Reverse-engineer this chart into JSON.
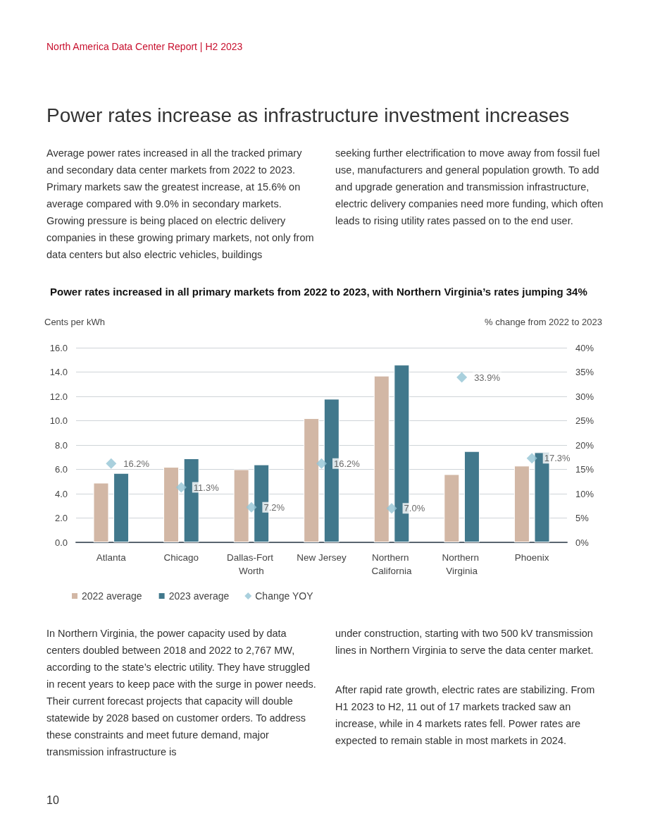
{
  "chart_data": {
    "type": "bar",
    "title": "Power rates increased in all primary markets from 2022 to 2023, with Northern Virginia’s rates jumping 34%",
    "ylabel": "Cents per kWh",
    "y2label": "% change from 2022 to 2023",
    "categories": [
      "Atlanta",
      "Chicago",
      "Dallas-Fort Worth",
      "New Jersey",
      "Northern California",
      "Northern Virginia",
      "Phoenix"
    ],
    "series": [
      {
        "name": "2022 average",
        "type": "bar",
        "color": "#d2b7a5",
        "values": [
          4.9,
          6.2,
          6.0,
          10.2,
          13.7,
          5.6,
          6.3
        ]
      },
      {
        "name": "2023 average",
        "type": "bar",
        "color": "#41788c",
        "values": [
          5.7,
          6.9,
          6.4,
          11.8,
          14.6,
          7.5,
          7.4
        ]
      },
      {
        "name": "Change YOY",
        "type": "scatter",
        "axis": "y2",
        "marker": "diamond",
        "color": "#93c4d4",
        "values": [
          16.2,
          11.3,
          7.2,
          16.2,
          7.0,
          33.9,
          17.3
        ],
        "value_labels": [
          "16.2%",
          "11.3%",
          "7.2%",
          "16.2%",
          "7.0%",
          "33.9%",
          "17.3%"
        ]
      }
    ],
    "ylim": [
      0,
      16
    ],
    "yticks": [
      {
        "value": 0,
        "label": "0.0"
      },
      {
        "value": 2,
        "label": "2.0"
      },
      {
        "value": 4,
        "label": "4.0"
      },
      {
        "value": 6,
        "label": "6.0"
      },
      {
        "value": 8,
        "label": "8.0"
      },
      {
        "value": 10,
        "label": "10.0"
      },
      {
        "value": 12,
        "label": "12.0"
      },
      {
        "value": 14,
        "label": "14.0"
      },
      {
        "value": 16,
        "label": "16.0"
      }
    ],
    "y2lim": [
      0,
      40
    ],
    "y2ticks": [
      {
        "value": 0,
        "label": "0%"
      },
      {
        "value": 5,
        "label": "5%"
      },
      {
        "value": 10,
        "label": "10%"
      },
      {
        "value": 15,
        "label": "15%"
      },
      {
        "value": 20,
        "label": "20%"
      },
      {
        "value": 25,
        "label": "25%"
      },
      {
        "value": 30,
        "label": "30%"
      },
      {
        "value": 35,
        "label": "35%"
      },
      {
        "value": 40,
        "label": "40%"
      }
    ],
    "grid": "y",
    "legend": "bottom left",
    "annotations": [
      "North America Data Center Report | H2 2023",
      "Power rates increase as infrastructure investment increases",
      "Average power rates increased in all the tracked primary and secondary data center markets from 2022 to 2023. Primary markets saw the greatest increase, at 15.6% on average compared with 9.0% in secondary markets. Growing pressure is being placed on electric delivery companies in these growing primary markets, not only from data centers but also electric vehicles, buildings",
      "seeking further electrification to move away from fossil fuel use, manufacturers and general population growth. To add and upgrade generation and transmission infrastructure, electric delivery companies need more funding, which often leads to rising utility rates passed on to the end user.",
      "In Northern Virginia, the power capacity used by data centers doubled between 2018 and 2022 to 2,767 MW, according to the state’s electric utility. They have struggled in recent years to keep pace with the surge in power needs. Their current forecast projects that capacity will double statewide by 2028 based on customer orders. To address these constraints and meet future demand, major transmission infrastructure is",
      "under construction, starting with two 500 kV transmission lines in Northern Virginia to serve the data center market.",
      "After rapid rate growth, electric rates are stabilizing. From H1 2023 to H2, 11 out of 17 markets tracked saw an increase, while in 4 markets rates fell. Power rates are expected to remain stable in most markets in 2024.",
      "10"
    ]
  }
}
